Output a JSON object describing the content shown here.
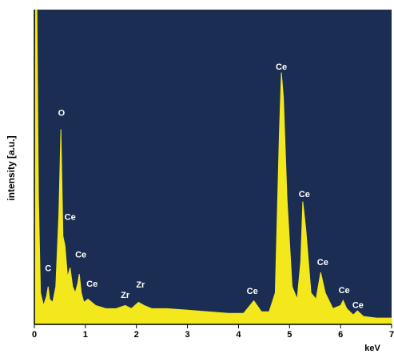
{
  "chart_data": {
    "type": "area",
    "xlabel": "keV",
    "ylabel": "intensity [a.u.]",
    "x": [
      0,
      0.02,
      0.05,
      0.08,
      0.12,
      0.18,
      0.24,
      0.27,
      0.3,
      0.36,
      0.42,
      0.48,
      0.52,
      0.56,
      0.6,
      0.65,
      0.7,
      0.75,
      0.8,
      0.85,
      0.88,
      0.92,
      0.97,
      1.05,
      1.2,
      1.4,
      1.6,
      1.78,
      1.9,
      2.04,
      2.15,
      2.3,
      2.6,
      3.0,
      3.4,
      3.8,
      4.1,
      4.3,
      4.45,
      4.6,
      4.72,
      4.8,
      4.84,
      4.88,
      4.95,
      5.05,
      5.15,
      5.22,
      5.26,
      5.32,
      5.42,
      5.52,
      5.61,
      5.7,
      5.85,
      6.0,
      6.05,
      6.12,
      6.25,
      6.33,
      6.45,
      6.7,
      7.0
    ],
    "values": [
      0,
      100,
      100,
      40,
      10,
      6,
      9,
      12,
      8,
      7,
      12,
      35,
      62,
      28,
      25,
      15,
      18,
      12,
      10,
      13,
      16,
      10,
      7,
      8,
      6,
      5,
      5,
      6,
      5,
      7,
      6,
      5,
      5,
      4.5,
      4,
      3.5,
      3.5,
      7.5,
      4,
      4,
      10,
      60,
      80,
      72,
      40,
      12,
      8,
      20,
      39,
      30,
      10,
      8,
      16.5,
      10,
      5,
      6,
      7.6,
      5,
      3,
      4.3,
      2.5,
      2,
      2
    ],
    "color": "#f2e81c",
    "background": "#1b2d52",
    "xlim": [
      0,
      7
    ],
    "xticks": [
      0,
      1,
      2,
      3,
      4,
      5,
      6,
      7
    ],
    "ylim": [
      0,
      100
    ],
    "annotations": [
      {
        "text": "O",
        "x": 0.53,
        "y": 67
      },
      {
        "text": "Ce",
        "x": 0.7,
        "y": 34
      },
      {
        "text": "C",
        "x": 0.27,
        "y": 17.6
      },
      {
        "text": "Ce",
        "x": 0.91,
        "y": 22
      },
      {
        "text": "Ce",
        "x": 1.13,
        "y": 12.7
      },
      {
        "text": "Zr",
        "x": 1.78,
        "y": 9.2
      },
      {
        "text": "Zr",
        "x": 2.08,
        "y": 12.5
      },
      {
        "text": "Ce",
        "x": 4.27,
        "y": 10.4
      },
      {
        "text": "Ce",
        "x": 4.84,
        "y": 81.7
      },
      {
        "text": "Ce",
        "x": 5.29,
        "y": 41.2
      },
      {
        "text": "Ce",
        "x": 5.65,
        "y": 19.6
      },
      {
        "text": "Ce",
        "x": 6.07,
        "y": 10.7
      },
      {
        "text": "Ce",
        "x": 6.34,
        "y": 5.9
      }
    ]
  }
}
